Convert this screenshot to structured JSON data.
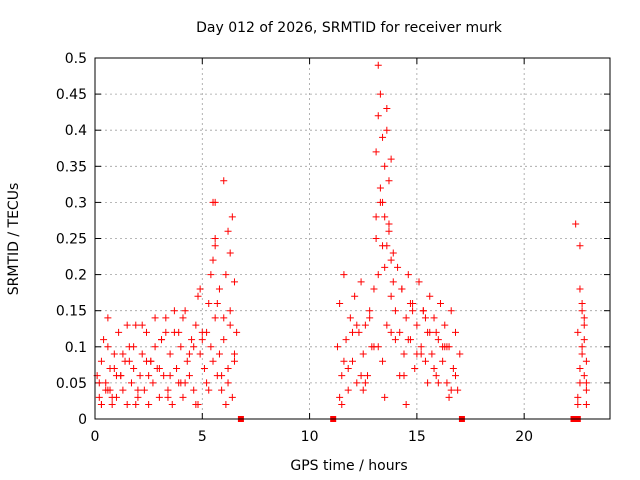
{
  "chart_data": {
    "type": "scatter",
    "title": "Day 012 of 2026, SRMTID for receiver murk",
    "xlabel": "GPS time / hours",
    "ylabel": "SRMTID / TECUs",
    "xlim": [
      0,
      24
    ],
    "ylim": [
      0,
      0.5
    ],
    "xticks": [
      0,
      5,
      10,
      15,
      20
    ],
    "xtick_labels": [
      "0",
      "5",
      "10",
      "15",
      "20"
    ],
    "yticks": [
      0,
      0.05,
      0.1,
      0.15,
      0.2,
      0.25,
      0.3,
      0.35,
      0.4,
      0.45,
      0.5
    ],
    "ytick_labels": [
      "0",
      "0.05",
      "0.1",
      "0.15",
      "0.2",
      "0.25",
      "0.3",
      "0.35",
      "0.4",
      "0.45",
      "0.5"
    ],
    "grid": true,
    "color": "#ff0000",
    "series": [
      {
        "marker": "plus",
        "x": [
          0.1,
          0.2,
          0.3,
          0.3,
          0.4,
          0.5,
          0.6,
          0.6,
          0.7,
          0.8,
          0.9,
          1.0,
          1.1,
          1.2,
          1.3,
          1.4,
          1.5,
          1.6,
          1.7,
          1.8,
          1.9,
          2.0,
          2.1,
          2.2,
          2.3,
          2.4,
          2.5,
          2.6,
          2.7,
          2.8,
          2.9,
          3.0,
          3.1,
          3.2,
          3.3,
          3.4,
          3.5,
          3.6,
          3.7,
          3.8,
          3.9,
          4.0,
          4.1,
          4.2,
          4.3,
          4.4,
          4.5,
          4.6,
          4.7,
          4.8,
          4.9,
          5.0,
          5.1,
          5.2,
          5.3,
          5.4,
          5.5,
          5.5,
          5.6,
          5.6,
          5.7,
          5.8,
          5.9,
          6.0,
          6.1,
          6.2,
          6.3,
          6.4,
          6.5,
          6.6,
          0.3,
          0.6,
          1.0,
          1.5,
          2.0,
          2.6,
          3.1,
          3.7,
          4.2,
          4.8,
          5.2,
          5.8,
          6.2,
          0.5,
          1.3,
          2.2,
          3.0,
          3.9,
          4.6,
          5.4,
          6.0,
          6.5,
          0.2,
          0.9,
          1.8,
          2.8,
          3.5,
          4.4,
          5.0,
          5.7,
          6.3,
          0.7,
          1.6,
          2.5,
          3.3,
          4.1,
          4.9,
          5.6,
          6.4,
          6.0,
          5.5,
          5.6,
          6.2,
          6.3,
          6.5,
          0.8,
          1.2,
          1.9,
          2.4,
          3.4,
          4.0,
          4.7,
          5.3,
          5.9,
          6.1,
          11.3,
          11.4,
          11.5,
          11.6,
          11.7,
          11.8,
          11.9,
          12.0,
          12.1,
          12.2,
          12.3,
          12.4,
          12.5,
          12.6,
          12.7,
          12.8,
          12.9,
          13.0,
          13.1,
          13.1,
          13.2,
          13.2,
          13.3,
          13.3,
          13.4,
          13.4,
          13.5,
          13.5,
          13.6,
          13.6,
          13.7,
          13.7,
          13.8,
          13.8,
          13.9,
          14.0,
          14.1,
          14.2,
          14.3,
          14.4,
          14.5,
          14.6,
          14.7,
          14.8,
          14.9,
          15.0,
          15.1,
          15.2,
          15.3,
          15.4,
          15.5,
          15.6,
          15.7,
          15.8,
          15.9,
          16.0,
          16.1,
          16.2,
          16.3,
          16.4,
          16.5,
          16.6,
          16.7,
          16.8,
          16.9,
          17.0,
          11.4,
          11.8,
          12.2,
          12.6,
          13.0,
          13.4,
          13.8,
          14.2,
          14.6,
          15.0,
          15.4,
          15.8,
          16.2,
          16.6,
          11.6,
          12.0,
          12.4,
          12.8,
          13.2,
          13.6,
          14.0,
          14.4,
          14.8,
          15.2,
          15.6,
          16.0,
          16.4,
          16.8,
          11.5,
          12.5,
          13.5,
          14.5,
          15.5,
          16.5,
          13.1,
          13.3,
          13.5,
          13.7,
          13.9,
          13.2,
          13.4,
          13.6,
          13.8,
          14.3,
          14.7,
          15.3,
          15.9,
          16.3,
          22.4,
          22.5,
          22.6,
          22.6,
          22.7,
          22.7,
          22.8,
          22.8,
          22.9,
          22.9,
          22.5,
          22.6,
          22.7,
          22.8,
          22.9,
          22.6,
          22.7,
          22.8,
          22.5,
          22.9
        ],
        "y": [
          0.06,
          0.03,
          0.08,
          0.02,
          0.11,
          0.05,
          0.14,
          0.04,
          0.07,
          0.02,
          0.09,
          0.03,
          0.12,
          0.06,
          0.04,
          0.08,
          0.02,
          0.1,
          0.05,
          0.07,
          0.13,
          0.03,
          0.06,
          0.09,
          0.04,
          0.12,
          0.02,
          0.08,
          0.05,
          0.1,
          0.07,
          0.03,
          0.11,
          0.06,
          0.14,
          0.04,
          0.09,
          0.02,
          0.12,
          0.07,
          0.05,
          0.1,
          0.03,
          0.15,
          0.08,
          0.06,
          0.11,
          0.04,
          0.13,
          0.02,
          0.09,
          0.12,
          0.07,
          0.05,
          0.16,
          0.1,
          0.22,
          0.08,
          0.25,
          0.14,
          0.06,
          0.18,
          0.04,
          0.11,
          0.2,
          0.07,
          0.15,
          0.03,
          0.09,
          0.12,
          0.02,
          0.1,
          0.06,
          0.13,
          0.04,
          0.08,
          0.11,
          0.15,
          0.05,
          0.17,
          0.12,
          0.09,
          0.05,
          0.04,
          0.09,
          0.13,
          0.07,
          0.12,
          0.1,
          0.2,
          0.14,
          0.08,
          0.05,
          0.07,
          0.1,
          0.14,
          0.06,
          0.09,
          0.11,
          0.16,
          0.13,
          0.04,
          0.08,
          0.06,
          0.12,
          0.14,
          0.18,
          0.24,
          0.28,
          0.33,
          0.3,
          0.3,
          0.26,
          0.23,
          0.19,
          0.03,
          0.06,
          0.02,
          0.08,
          0.03,
          0.05,
          0.02,
          0.04,
          0.06,
          0.02,
          0.1,
          0.16,
          0.06,
          0.2,
          0.11,
          0.04,
          0.14,
          0.08,
          0.17,
          0.05,
          0.12,
          0.19,
          0.09,
          0.13,
          0.06,
          0.15,
          0.1,
          0.18,
          0.25,
          0.37,
          0.42,
          0.49,
          0.3,
          0.45,
          0.24,
          0.39,
          0.35,
          0.28,
          0.43,
          0.4,
          0.33,
          0.27,
          0.22,
          0.36,
          0.19,
          0.15,
          0.21,
          0.12,
          0.18,
          0.09,
          0.14,
          0.2,
          0.11,
          0.16,
          0.07,
          0.13,
          0.19,
          0.1,
          0.15,
          0.08,
          0.12,
          0.17,
          0.09,
          0.14,
          0.06,
          0.11,
          0.16,
          0.08,
          0.13,
          0.05,
          0.1,
          0.15,
          0.07,
          0.12,
          0.04,
          0.09,
          0.03,
          0.07,
          0.13,
          0.05,
          0.1,
          0.08,
          0.12,
          0.06,
          0.11,
          0.09,
          0.14,
          0.07,
          0.1,
          0.04,
          0.08,
          0.12,
          0.06,
          0.14,
          0.1,
          0.13,
          0.11,
          0.06,
          0.15,
          0.09,
          0.12,
          0.05,
          0.1,
          0.06,
          0.02,
          0.04,
          0.03,
          0.02,
          0.05,
          0.03,
          0.28,
          0.32,
          0.21,
          0.26,
          0.23,
          0.2,
          0.3,
          0.24,
          0.17,
          0.18,
          0.16,
          0.15,
          0.12,
          0.1,
          0.27,
          0.12,
          0.24,
          0.18,
          0.1,
          0.15,
          0.06,
          0.13,
          0.08,
          0.04,
          0.03,
          0.07,
          0.16,
          0.11,
          0.02,
          0.05,
          0.09,
          0.14,
          0.02,
          0.05
        ]
      },
      {
        "marker": "square",
        "x": [
          6.8,
          11.1,
          17.1,
          22.3,
          22.5
        ],
        "y": [
          0,
          0,
          0,
          0,
          0
        ]
      }
    ]
  }
}
